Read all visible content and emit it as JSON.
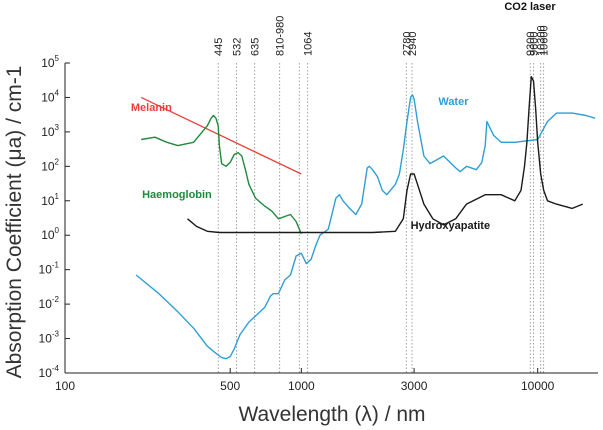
{
  "chart_data": {
    "type": "line",
    "xscale": "log",
    "yscale": "log",
    "xlim": [
      100,
      18000
    ],
    "ylim": [
      0.0001,
      100000
    ],
    "xlabel": "Wavelength (λ) / nm",
    "ylabel": "Absorption Coefficient (μa) / cm-1",
    "x_ticks": [
      {
        "value": 100,
        "label": "100"
      },
      {
        "value": 500,
        "label": "500"
      },
      {
        "value": 1000,
        "label": "1000"
      },
      {
        "value": 3000,
        "label": "3000"
      },
      {
        "value": 10000,
        "label": "10000"
      }
    ],
    "y_ticks": [
      {
        "value": 0.0001,
        "base": "10",
        "exp": "-4"
      },
      {
        "value": 0.001,
        "base": "10",
        "exp": "-3"
      },
      {
        "value": 0.01,
        "base": "10",
        "exp": "-2"
      },
      {
        "value": 0.1,
        "base": "10",
        "exp": "-1"
      },
      {
        "value": 1,
        "base": "10",
        "exp": "0"
      },
      {
        "value": 10,
        "base": "10",
        "exp": "1"
      },
      {
        "value": 100,
        "base": "10",
        "exp": "2"
      },
      {
        "value": 1000,
        "base": "10",
        "exp": "3"
      },
      {
        "value": 10000,
        "base": "10",
        "exp": "4"
      },
      {
        "value": 100000,
        "base": "10",
        "exp": "5"
      }
    ],
    "wavelength_markers": [
      {
        "value": 445,
        "label": "445"
      },
      {
        "value": 532,
        "label": "532"
      },
      {
        "value": 635,
        "label": "635"
      },
      {
        "value": 810,
        "label": "810-980"
      },
      {
        "value": 980,
        "label": ""
      },
      {
        "value": 1064,
        "label": "1064"
      },
      {
        "value": 2780,
        "label": "2780"
      },
      {
        "value": 2940,
        "label": "2940"
      },
      {
        "value": 9300,
        "label": "9300"
      },
      {
        "value": 9600,
        "label": "9600"
      },
      {
        "value": 10300,
        "label": "10300"
      },
      {
        "value": 10600,
        "label": "10600"
      }
    ],
    "annotation": "CO2 laser",
    "series": [
      {
        "name": "Melanin",
        "color": "#e8413c",
        "label_at": [
          190,
          4000
        ],
        "x": [
          210,
          1000
        ],
        "y": [
          10000,
          60
        ]
      },
      {
        "name": "Water",
        "color": "#2e9fd6",
        "label_at": [
          3800,
          6000
        ],
        "x": [
          200,
          250,
          300,
          350,
          400,
          430,
          460,
          480,
          500,
          520,
          550,
          600,
          650,
          700,
          740,
          760,
          800,
          850,
          900,
          950,
          1000,
          1050,
          1100,
          1150,
          1200,
          1300,
          1400,
          1450,
          1500,
          1600,
          1700,
          1800,
          1900,
          1940,
          2000,
          2100,
          2200,
          2300,
          2500,
          2600,
          2700,
          2800,
          2900,
          2950,
          3000,
          3100,
          3300,
          3500,
          4000,
          4500,
          4700,
          5000,
          5500,
          5800,
          6000,
          6100,
          6500,
          7000,
          8000,
          9000,
          10000,
          11000,
          12000,
          14000,
          16000,
          17500
        ],
        "y": [
          0.07,
          0.02,
          0.006,
          0.002,
          0.0006,
          0.0004,
          0.00028,
          0.00026,
          0.0003,
          0.0005,
          0.0013,
          0.003,
          0.005,
          0.008,
          0.017,
          0.02,
          0.02,
          0.05,
          0.07,
          0.25,
          0.3,
          0.15,
          0.2,
          0.5,
          1.0,
          1.5,
          12,
          15,
          10,
          6,
          4,
          8,
          90,
          100,
          80,
          50,
          20,
          15,
          30,
          60,
          300,
          2000,
          10000,
          12000,
          9000,
          2000,
          200,
          120,
          200,
          90,
          70,
          100,
          80,
          130,
          400,
          2000,
          800,
          500,
          500,
          550,
          600,
          2000,
          3500,
          3500,
          3000,
          2500
        ]
      },
      {
        "name": "Haemoglobin",
        "color": "#1f8a3c",
        "label_at": [
          212,
          12
        ],
        "x": [
          210,
          240,
          270,
          300,
          350,
          400,
          415,
          425,
          435,
          445,
          450,
          460,
          480,
          500,
          520,
          540,
          560,
          580,
          600,
          640,
          700,
          750,
          800,
          850,
          900,
          950,
          1000
        ],
        "y": [
          600,
          700,
          500,
          400,
          500,
          1500,
          2500,
          3000,
          2500,
          1500,
          400,
          120,
          100,
          130,
          220,
          250,
          200,
          80,
          30,
          12,
          7,
          5,
          3,
          3.5,
          4,
          2.5,
          1.1
        ]
      },
      {
        "name": "Hydroxyapatite",
        "color": "#1a1a1a",
        "label_at": [
          2900,
          1.5
        ],
        "x": [
          330,
          360,
          400,
          450,
          600,
          1000,
          2000,
          2500,
          2700,
          2800,
          2900,
          3000,
          3100,
          3300,
          3600,
          4000,
          4500,
          5000,
          6000,
          7000,
          8000,
          8500,
          8800,
          9000,
          9200,
          9400,
          9600,
          9800,
          10000,
          10300,
          10600,
          11000,
          12000,
          14000,
          15500
        ],
        "y": [
          3,
          1.8,
          1.3,
          1.2,
          1.2,
          1.2,
          1.2,
          1.3,
          3,
          20,
          60,
          60,
          30,
          8,
          3,
          2,
          3,
          8,
          15,
          15,
          10,
          20,
          100,
          500,
          5000,
          40000,
          30000,
          5000,
          500,
          60,
          20,
          10,
          8,
          6,
          8
        ]
      }
    ]
  }
}
